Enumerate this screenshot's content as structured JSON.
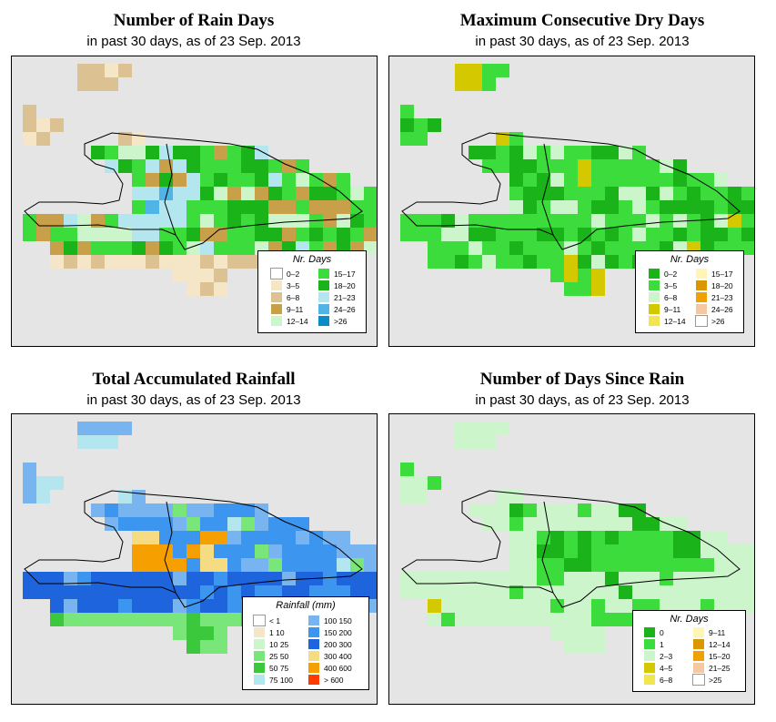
{
  "panels": [
    {
      "title": "Number of Rain Days",
      "subtitle": "in past 30 days, as of  23 Sep. 2013",
      "legend": {
        "title": "Nr. Days",
        "items": [
          {
            "label": "0–2",
            "color": "#ffffff"
          },
          {
            "label": "3–5",
            "color": "#f5e6c8"
          },
          {
            "label": "6–8",
            "color": "#dcc192"
          },
          {
            "label": "9–11",
            "color": "#c8a04a"
          },
          {
            "label": "12–14",
            "color": "#ccf5cc"
          },
          {
            "label": "15–17",
            "color": "#3cdc3c"
          },
          {
            "label": "18–20",
            "color": "#1ab41a"
          },
          {
            "label": "21–23",
            "color": "#b4e6f0"
          },
          {
            "label": "24–26",
            "color": "#50b4e6"
          },
          {
            "label": ">26",
            "color": "#0a8cc8"
          }
        ]
      }
    },
    {
      "title": "Maximum Consecutive Dry Days",
      "subtitle": "in past 30 days, as of  23 Sep. 2013",
      "legend": {
        "title": "Nr. Days",
        "items": [
          {
            "label": "0–2",
            "color": "#1ab41a"
          },
          {
            "label": "3–5",
            "color": "#3cdc3c"
          },
          {
            "label": "6–8",
            "color": "#ccf5cc"
          },
          {
            "label": "9–11",
            "color": "#d4c800"
          },
          {
            "label": "12–14",
            "color": "#f0e650"
          },
          {
            "label": "15–17",
            "color": "#fff5b4"
          },
          {
            "label": "18–20",
            "color": "#dc9600"
          },
          {
            "label": "21–23",
            "color": "#f0a000"
          },
          {
            "label": "24–26",
            "color": "#f5c8a0"
          },
          {
            "label": ">26",
            "color": "#ffffff"
          }
        ]
      }
    },
    {
      "title": "Total Accumulated Rainfall",
      "subtitle": "in past 30 days, as of  23 Sep. 2013",
      "legend": {
        "title": "Rainfall (mm)",
        "items": [
          {
            "label": "< 1",
            "color": "#ffffff"
          },
          {
            "label": "1    10",
            "color": "#f5e6c8"
          },
          {
            "label": "10    25",
            "color": "#ccf5cc"
          },
          {
            "label": "25    50",
            "color": "#78e678"
          },
          {
            "label": "50    75",
            "color": "#3cc83c"
          },
          {
            "label": "75   100",
            "color": "#b4e6f0"
          },
          {
            "label": "100   150",
            "color": "#78b4f0"
          },
          {
            "label": "150   200",
            "color": "#3c96f0"
          },
          {
            "label": "200   300",
            "color": "#1e64dc"
          },
          {
            "label": "300   400",
            "color": "#f5dc82"
          },
          {
            "label": "400   600",
            "color": "#f5a000"
          },
          {
            "label": "> 600",
            "color": "#ff3c00"
          }
        ]
      }
    },
    {
      "title": "Number of Days Since Rain",
      "subtitle": "in past 30 days, as of  23 Sep. 2013",
      "legend": {
        "title": "Nr. Days",
        "items": [
          {
            "label": "0",
            "color": "#1ab41a"
          },
          {
            "label": "1",
            "color": "#3cdc3c"
          },
          {
            "label": "2–3",
            "color": "#ccf5cc"
          },
          {
            "label": "4–5",
            "color": "#d4c800"
          },
          {
            "label": "6–8",
            "color": "#f0e650"
          },
          {
            "label": "9–11",
            "color": "#fff5b4"
          },
          {
            "label": "12–14",
            "color": "#dc9600"
          },
          {
            "label": "15–20",
            "color": "#f0a000"
          },
          {
            "label": "21–25",
            "color": "#f5c8a0"
          },
          {
            "label": ">25",
            "color": "#ffffff"
          }
        ]
      }
    }
  ],
  "background_color": "#e5e5e5",
  "coast_color": "#000000"
}
